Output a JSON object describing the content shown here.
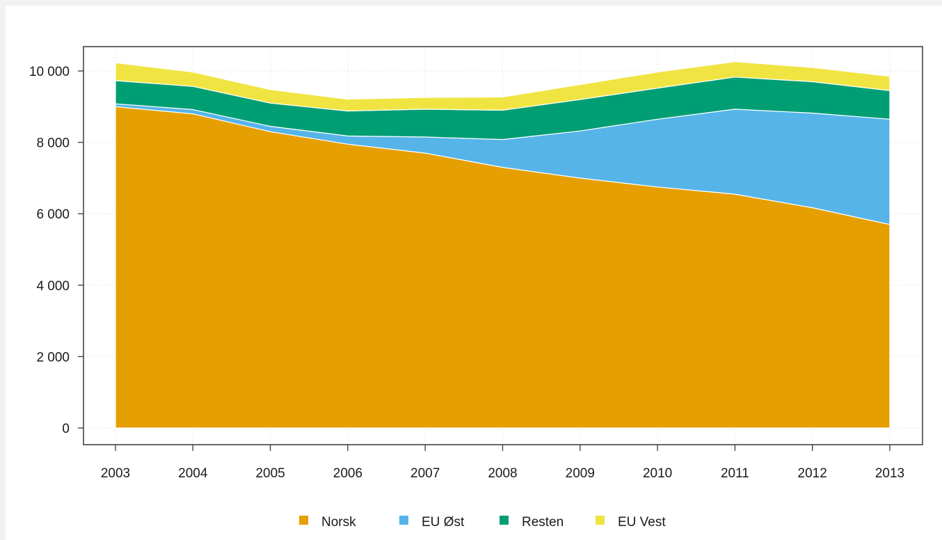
{
  "chart_data": {
    "type": "area",
    "stacked": true,
    "title": "",
    "xlabel": "",
    "ylabel": "",
    "x": [
      "2003",
      "2004",
      "2005",
      "2006",
      "2007",
      "2008",
      "2009",
      "2010",
      "2011",
      "2012",
      "2013"
    ],
    "ylim": [
      0,
      10700
    ],
    "y_ticks": [
      0,
      2000,
      4000,
      6000,
      8000,
      10000
    ],
    "y_tick_labels": [
      "0",
      "2 000",
      "4 000",
      "6 000",
      "8 000",
      "10 000"
    ],
    "grid": true,
    "legend_position": "bottom",
    "series": [
      {
        "name": "Norsk",
        "color": "#e69f00",
        "values": [
          9000,
          8800,
          8300,
          7950,
          7700,
          7300,
          7000,
          6750,
          6550,
          6170,
          5700
        ]
      },
      {
        "name": "EU Øst",
        "color": "#56b4e9",
        "values": [
          80,
          120,
          150,
          230,
          450,
          780,
          1320,
          1900,
          2380,
          2650,
          2950
        ]
      },
      {
        "name": "Resten",
        "color": "#009e73",
        "values": [
          650,
          650,
          650,
          700,
          780,
          820,
          880,
          870,
          900,
          880,
          800
        ]
      },
      {
        "name": "EU Vest",
        "color": "#f0e442",
        "values": [
          500,
          400,
          380,
          330,
          330,
          370,
          420,
          450,
          430,
          400,
          400
        ]
      }
    ]
  }
}
